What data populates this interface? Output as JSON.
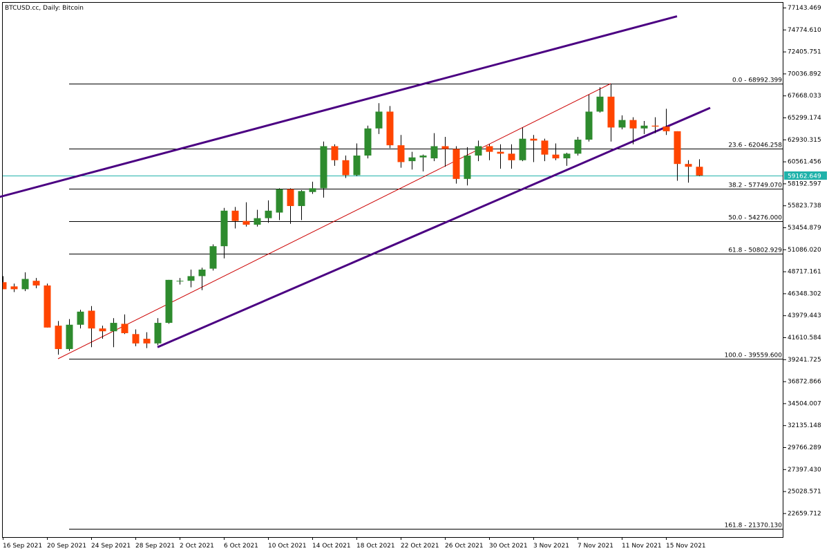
{
  "chart_data": {
    "type": "candlestick",
    "title": "BTCUSD.cc, Daily:  Bitcoin",
    "colors": {
      "bull": "#2e8b2e",
      "bear": "#ff4500",
      "wick": "#000000",
      "channel": "#4b0082",
      "ray": "#cc0000",
      "fib": "#000000",
      "price_line": "#20b2aa",
      "price_label_bg": "#20b2aa"
    },
    "ylim": [
      20500,
      78500
    ],
    "y_ticks": [
      "77143.469",
      "74774.610",
      "72405.751",
      "70036.892",
      "67668.033",
      "65299.174",
      "62930.315",
      "60561.456",
      "58192.597",
      "55823.738",
      "53454.879",
      "51086.020",
      "48717.161",
      "46348.302",
      "43979.443",
      "41610.584",
      "39241.725",
      "36872.866",
      "34504.007",
      "32135.148",
      "29766.289",
      "27397.430",
      "25028.571",
      "22659.712"
    ],
    "x_labels": [
      "16 Sep 2021",
      "20 Sep 2021",
      "24 Sep 2021",
      "28 Sep 2021",
      "2 Oct 2021",
      "6 Oct 2021",
      "10 Oct 2021",
      "14 Oct 2021",
      "18 Oct 2021",
      "22 Oct 2021",
      "26 Oct 2021",
      "30 Oct 2021",
      "3 Nov 2021",
      "7 Nov 2021",
      "11 Nov 2021",
      "15 Nov 2021"
    ],
    "candles": [
      {
        "date": "16 Sep",
        "o": 47750,
        "h": 48400,
        "l": 47000,
        "c": 47000
      },
      {
        "date": "17 Sep",
        "o": 47300,
        "h": 47600,
        "l": 46700,
        "c": 47000
      },
      {
        "date": "18 Sep",
        "o": 47000,
        "h": 48800,
        "l": 46800,
        "c": 48100
      },
      {
        "date": "19 Sep",
        "o": 47900,
        "h": 48200,
        "l": 47100,
        "c": 47400
      },
      {
        "date": "20 Sep",
        "o": 47400,
        "h": 47600,
        "l": 42900,
        "c": 42900
      },
      {
        "date": "21 Sep",
        "o": 43100,
        "h": 43600,
        "l": 40000,
        "c": 40600
      },
      {
        "date": "22 Sep",
        "o": 40600,
        "h": 43800,
        "l": 40400,
        "c": 43200
      },
      {
        "date": "23 Sep",
        "o": 43200,
        "h": 44800,
        "l": 42800,
        "c": 44600
      },
      {
        "date": "24 Sep",
        "o": 44700,
        "h": 45200,
        "l": 40800,
        "c": 42800
      },
      {
        "date": "25 Sep",
        "o": 42800,
        "h": 43100,
        "l": 41700,
        "c": 42500
      },
      {
        "date": "26 Sep",
        "o": 42500,
        "h": 43900,
        "l": 40800,
        "c": 43400
      },
      {
        "date": "27 Sep",
        "o": 43300,
        "h": 44300,
        "l": 42200,
        "c": 42300
      },
      {
        "date": "28 Sep",
        "o": 42200,
        "h": 42700,
        "l": 40900,
        "c": 41200
      },
      {
        "date": "29 Sep",
        "o": 41700,
        "h": 42400,
        "l": 40700,
        "c": 41200
      },
      {
        "date": "30 Sep",
        "o": 41200,
        "h": 43900,
        "l": 41000,
        "c": 43400
      },
      {
        "date": "1 Oct",
        "o": 43400,
        "h": 48000,
        "l": 43300,
        "c": 48000
      },
      {
        "date": "2 Oct",
        "o": 47900,
        "h": 48200,
        "l": 47500,
        "c": 47900
      },
      {
        "date": "3 Oct",
        "o": 47900,
        "h": 49100,
        "l": 47200,
        "c": 48400
      },
      {
        "date": "4 Oct",
        "o": 48400,
        "h": 49300,
        "l": 46900,
        "c": 49100
      },
      {
        "date": "5 Oct",
        "o": 49200,
        "h": 51800,
        "l": 49000,
        "c": 51600
      },
      {
        "date": "6 Oct",
        "o": 51600,
        "h": 55700,
        "l": 50300,
        "c": 55400
      },
      {
        "date": "7 Oct",
        "o": 55400,
        "h": 55800,
        "l": 53500,
        "c": 54300
      },
      {
        "date": "8 Oct",
        "o": 54300,
        "h": 56300,
        "l": 53700,
        "c": 53900
      },
      {
        "date": "9 Oct",
        "o": 53900,
        "h": 55500,
        "l": 53700,
        "c": 54600
      },
      {
        "date": "10 Oct",
        "o": 54600,
        "h": 56500,
        "l": 54100,
        "c": 55400
      },
      {
        "date": "11 Oct",
        "o": 55200,
        "h": 57800,
        "l": 54400,
        "c": 57700
      },
      {
        "date": "12 Oct",
        "o": 57700,
        "h": 57800,
        "l": 54000,
        "c": 55900
      },
      {
        "date": "13 Oct",
        "o": 55900,
        "h": 57600,
        "l": 54400,
        "c": 57500
      },
      {
        "date": "14 Oct",
        "o": 57400,
        "h": 58500,
        "l": 57200,
        "c": 57800
      },
      {
        "date": "15 Oct",
        "o": 57800,
        "h": 62800,
        "l": 56800,
        "c": 62300
      },
      {
        "date": "16 Oct",
        "o": 62300,
        "h": 62500,
        "l": 60200,
        "c": 60800
      },
      {
        "date": "17 Oct",
        "o": 60800,
        "h": 61300,
        "l": 58900,
        "c": 59200
      },
      {
        "date": "18 Oct",
        "o": 59200,
        "h": 62600,
        "l": 59100,
        "c": 61300
      },
      {
        "date": "19 Oct",
        "o": 61300,
        "h": 64500,
        "l": 61000,
        "c": 64200
      },
      {
        "date": "20 Oct",
        "o": 64200,
        "h": 66900,
        "l": 63600,
        "c": 66000
      },
      {
        "date": "21 Oct",
        "o": 66000,
        "h": 66600,
        "l": 62100,
        "c": 62400
      },
      {
        "date": "22 Oct",
        "o": 62400,
        "h": 63500,
        "l": 60000,
        "c": 60600
      },
      {
        "date": "23 Oct",
        "o": 60700,
        "h": 61700,
        "l": 59800,
        "c": 61100
      },
      {
        "date": "24 Oct",
        "o": 61100,
        "h": 61400,
        "l": 59600,
        "c": 61300
      },
      {
        "date": "25 Oct",
        "o": 61000,
        "h": 63700,
        "l": 60700,
        "c": 62300
      },
      {
        "date": "26 Oct",
        "o": 62300,
        "h": 63300,
        "l": 60100,
        "c": 62000
      },
      {
        "date": "27 Oct",
        "o": 62000,
        "h": 62300,
        "l": 58300,
        "c": 58800
      },
      {
        "date": "28 Oct",
        "o": 58800,
        "h": 62200,
        "l": 58100,
        "c": 61300
      },
      {
        "date": "29 Oct",
        "o": 61300,
        "h": 62900,
        "l": 60700,
        "c": 62300
      },
      {
        "date": "30 Oct",
        "o": 62300,
        "h": 62500,
        "l": 60800,
        "c": 61700
      },
      {
        "date": "31 Oct",
        "o": 61700,
        "h": 62500,
        "l": 59900,
        "c": 61500
      },
      {
        "date": "1 Nov",
        "o": 61500,
        "h": 62500,
        "l": 59900,
        "c": 60800
      },
      {
        "date": "2 Nov",
        "o": 60800,
        "h": 64300,
        "l": 60700,
        "c": 63100
      },
      {
        "date": "3 Nov",
        "o": 63100,
        "h": 63500,
        "l": 60600,
        "c": 62900
      },
      {
        "date": "4 Nov",
        "o": 62900,
        "h": 63100,
        "l": 60700,
        "c": 61400
      },
      {
        "date": "5 Nov",
        "o": 61400,
        "h": 62600,
        "l": 60800,
        "c": 61000
      },
      {
        "date": "6 Nov",
        "o": 61000,
        "h": 61600,
        "l": 60200,
        "c": 61500
      },
      {
        "date": "7 Nov",
        "o": 61500,
        "h": 63300,
        "l": 61300,
        "c": 63000
      },
      {
        "date": "8 Nov",
        "o": 63000,
        "h": 67800,
        "l": 62800,
        "c": 66000
      },
      {
        "date": "9 Nov",
        "o": 66000,
        "h": 68600,
        "l": 65900,
        "c": 67600
      },
      {
        "date": "10 Nov",
        "o": 67600,
        "h": 69000,
        "l": 62800,
        "c": 64300
      },
      {
        "date": "11 Nov",
        "o": 64300,
        "h": 65600,
        "l": 64100,
        "c": 65100
      },
      {
        "date": "12 Nov",
        "o": 65100,
        "h": 65400,
        "l": 62500,
        "c": 64200
      },
      {
        "date": "13 Nov",
        "o": 64200,
        "h": 65000,
        "l": 63600,
        "c": 64500
      },
      {
        "date": "14 Nov",
        "o": 64500,
        "h": 65400,
        "l": 63700,
        "c": 64400
      },
      {
        "date": "15 Nov",
        "o": 64400,
        "h": 66300,
        "l": 63500,
        "c": 63900
      },
      {
        "date": "16 Nov",
        "o": 63900,
        "h": 63900,
        "l": 58600,
        "c": 60400
      },
      {
        "date": "17 Nov",
        "o": 60400,
        "h": 60800,
        "l": 58400,
        "c": 60100
      },
      {
        "date": "18 Nov",
        "o": 60100,
        "h": 60900,
        "l": 59100,
        "c": 59162.649
      }
    ],
    "fibonacci": [
      {
        "label": "0.0 - 68992.399",
        "value": 68992.399
      },
      {
        "label": "23.6 - 62046.258",
        "value": 62046.258
      },
      {
        "label": "38.2 - 57749.070",
        "value": 57749.07
      },
      {
        "label": "50.0 - 54276.000",
        "value": 54276.0
      },
      {
        "label": "61.8 - 50802.929",
        "value": 50802.929
      },
      {
        "label": "100.0 - 39559.600",
        "value": 39559.6
      },
      {
        "label": "161.8 - 21370.130",
        "value": 21370.13
      }
    ],
    "current_price": "59162.649",
    "trendlines": [
      {
        "name": "fib-anchor-ray",
        "from": {
          "date": "21 Sep",
          "value": 39559.6
        },
        "to": {
          "date": "10 Nov",
          "value": 68992.4
        }
      },
      {
        "name": "channel-lower",
        "from": {
          "date": "30 Sep",
          "value": 40800
        },
        "to": {
          "date": "19 Nov",
          "value": 66400
        }
      },
      {
        "name": "channel-upper",
        "from": {
          "date": "12 Sep",
          "value": 55700
        },
        "to": {
          "date": "16 Nov",
          "value": 76200
        }
      }
    ]
  }
}
